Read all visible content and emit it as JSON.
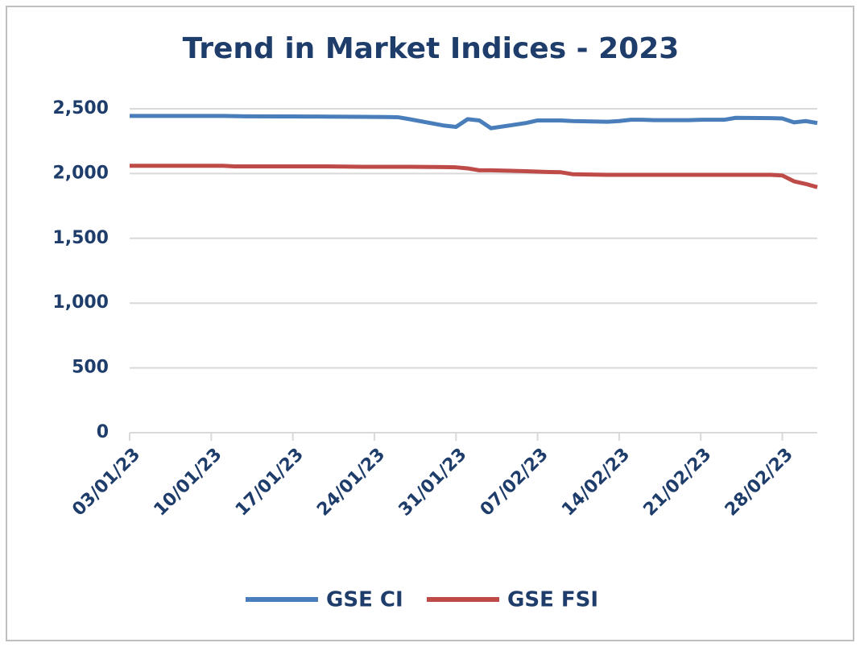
{
  "chart_data": {
    "type": "line",
    "title": "Trend in Market Indices - 2023",
    "x": [
      "03/01/23",
      "04/01/23",
      "05/01/23",
      "06/01/23",
      "09/01/23",
      "10/01/23",
      "11/01/23",
      "12/01/23",
      "13/01/23",
      "16/01/23",
      "17/01/23",
      "18/01/23",
      "19/01/23",
      "20/01/23",
      "23/01/23",
      "24/01/23",
      "25/01/23",
      "26/01/23",
      "27/01/23",
      "30/01/23",
      "31/01/23",
      "01/02/23",
      "02/02/23",
      "03/02/23",
      "06/02/23",
      "07/02/23",
      "08/02/23",
      "09/02/23",
      "10/02/23",
      "13/02/23",
      "14/02/23",
      "15/02/23",
      "16/02/23",
      "17/02/23",
      "20/02/23",
      "21/02/23",
      "22/02/23",
      "23/02/23",
      "24/02/23",
      "27/02/23",
      "28/02/23",
      "01/03/23",
      "02/03/23",
      "03/03/23"
    ],
    "series": [
      {
        "name": "GSE CI",
        "color": "#4a7ebb",
        "values": [
          2445,
          2445,
          2445,
          2445,
          2445,
          2445,
          2445,
          2443,
          2442,
          2441,
          2441,
          2440,
          2440,
          2439,
          2438,
          2437,
          2436,
          2435,
          2420,
          2370,
          2360,
          2420,
          2410,
          2350,
          2390,
          2410,
          2410,
          2410,
          2405,
          2400,
          2405,
          2415,
          2415,
          2412,
          2412,
          2415,
          2415,
          2415,
          2430,
          2428,
          2425,
          2395,
          2405,
          2390
        ]
      },
      {
        "name": "GSE FSI",
        "color": "#be4b48",
        "values": [
          2060,
          2060,
          2060,
          2060,
          2060,
          2060,
          2060,
          2055,
          2055,
          2055,
          2055,
          2055,
          2055,
          2055,
          2052,
          2052,
          2052,
          2052,
          2052,
          2050,
          2048,
          2040,
          2025,
          2025,
          2018,
          2015,
          2012,
          2010,
          1995,
          1990,
          1990,
          1990,
          1990,
          1990,
          1990,
          1990,
          1990,
          1990,
          1990,
          1990,
          1985,
          1940,
          1920,
          1895
        ]
      }
    ],
    "xlim": [
      "03/01/23",
      "03/03/23"
    ],
    "xticks": [
      "03/01/23",
      "10/01/23",
      "17/01/23",
      "24/01/23",
      "31/01/23",
      "07/02/23",
      "14/02/23",
      "21/02/23",
      "28/02/23"
    ],
    "ylim": [
      0,
      2500
    ],
    "yticks": [
      0,
      {
        "value": 500,
        "label": "500"
      },
      {
        "value": 1000,
        "label": "1,000"
      },
      {
        "value": 1500,
        "label": "1,500"
      },
      {
        "value": 2000,
        "label": "2,000"
      },
      {
        "value": 2500,
        "label": "2,500"
      }
    ],
    "grid": true,
    "legend": "bottom"
  }
}
